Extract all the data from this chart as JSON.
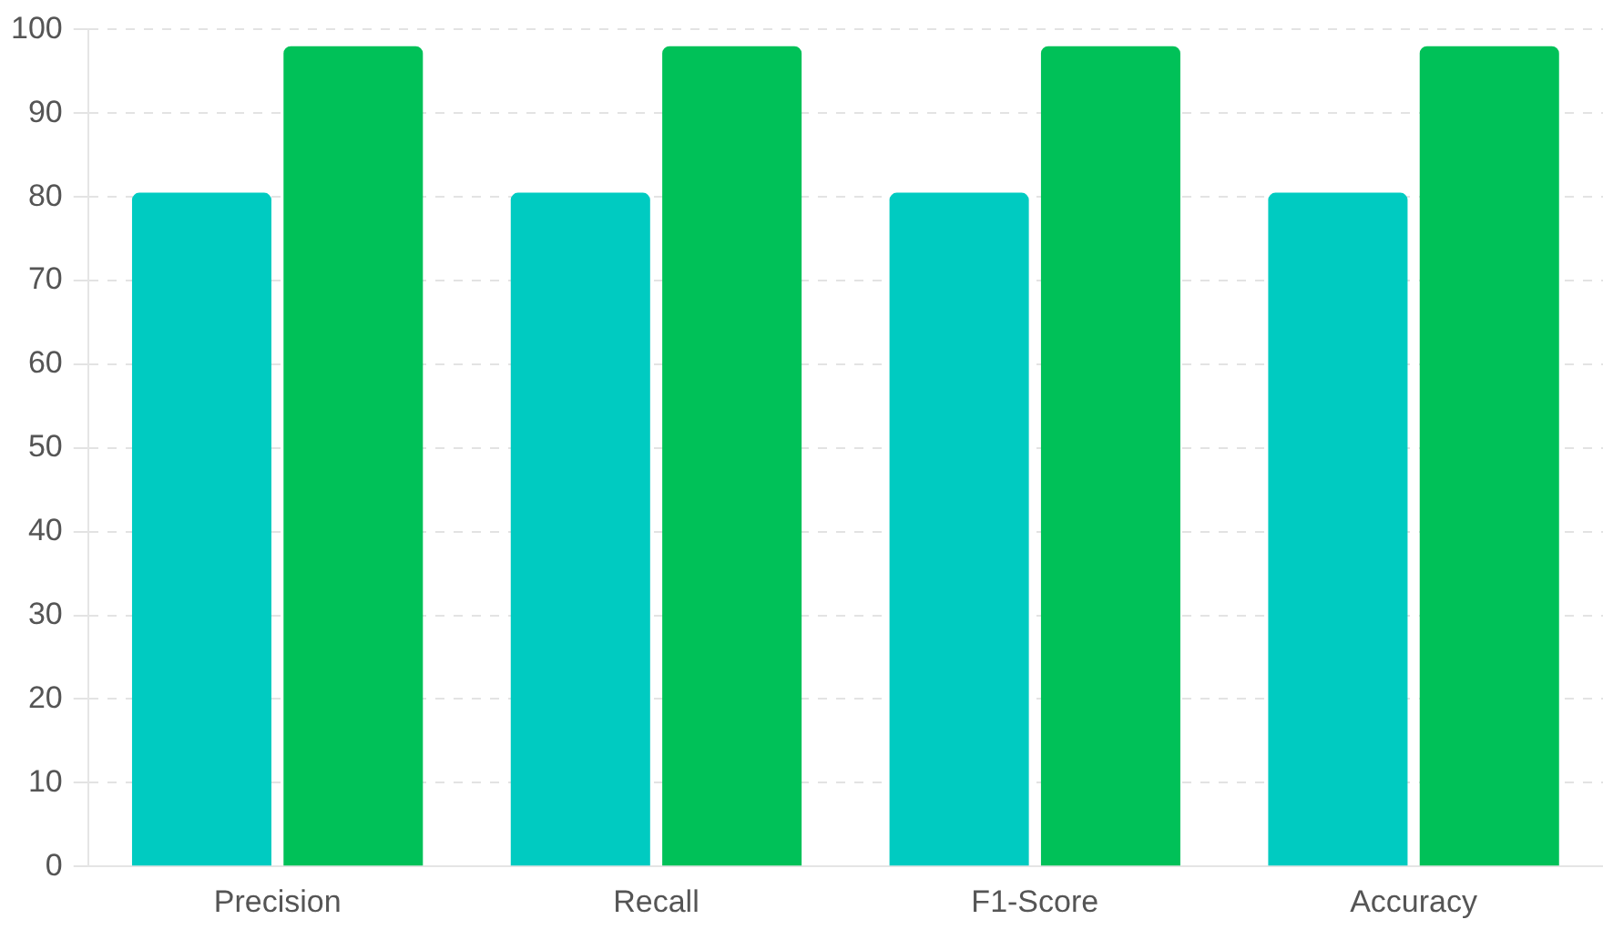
{
  "chart_data": {
    "type": "bar",
    "categories": [
      "Precision",
      "Recall",
      "F1-Score",
      "Accuracy"
    ],
    "series": [
      {
        "color": "#00cbc1",
        "values": [
          80.5,
          80.5,
          80.5,
          80.5
        ]
      },
      {
        "color": "#00c158",
        "values": [
          98,
          98,
          98,
          98
        ]
      }
    ],
    "ylim": [
      0,
      100
    ],
    "yticks": [
      0,
      10,
      20,
      30,
      40,
      50,
      60,
      70,
      80,
      90,
      100
    ],
    "grid": "y",
    "legend": false
  }
}
